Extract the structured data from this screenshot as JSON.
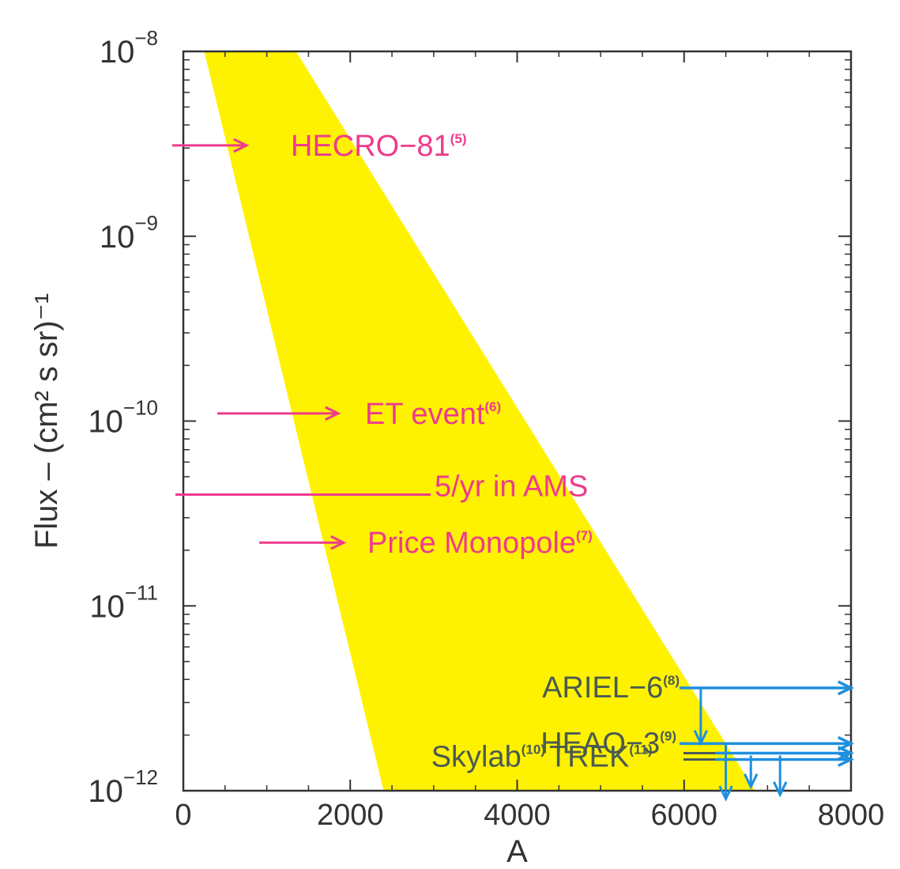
{
  "chart_data": {
    "type": "area",
    "xlabel": "A",
    "ylabel": "Flux – (cm² s sr)⁻¹",
    "xlim": [
      0,
      8000
    ],
    "ylim": [
      1e-12,
      1e-08
    ],
    "yscale": "log",
    "x_ticks": [
      "0",
      "2000",
      "4000",
      "6000",
      "8000"
    ],
    "y_ticks": [
      {
        "base": "10",
        "exp": "−12"
      },
      {
        "base": "10",
        "exp": "−11"
      },
      {
        "base": "10",
        "exp": "−10"
      },
      {
        "base": "10",
        "exp": "−9"
      },
      {
        "base": "10",
        "exp": "−8"
      }
    ],
    "band": {
      "color": "#fff200",
      "polygon": [
        [
          250,
          1e-08
        ],
        [
          1350,
          1e-08
        ],
        [
          6850,
          1e-12
        ],
        [
          2400,
          1e-12
        ]
      ]
    },
    "pink_annotations": [
      {
        "label": "HECRO−81",
        "ref": "(5)",
        "flux": 3.1e-09
      },
      {
        "label": "ET event",
        "ref": "(6)",
        "flux": 1.1e-10
      },
      {
        "label": "5/yr in AMS",
        "ref": "",
        "flux": 4e-11
      },
      {
        "label": "Price Monopole",
        "ref": "(7)",
        "flux": 2.2e-11
      }
    ],
    "blue_limits": [
      {
        "label": "ARIEL−6",
        "ref": "(8)",
        "flux": 3.6e-12,
        "from_x": 6200
      },
      {
        "label": "HEAO−3",
        "ref": "(9)",
        "flux": 1.8e-12,
        "from_x": 6500
      },
      {
        "label": "Skylab",
        "ref": "(10)",
        "flux": 1.55e-12,
        "from_x": 6800
      },
      {
        "label": "TREK",
        "ref": "(11)",
        "flux": 1.55e-12,
        "from_x": 7150
      }
    ],
    "colors": {
      "band": "#fff200",
      "pink": "#ee3b8c",
      "blue": "#1f8fe0",
      "axis": "#333333"
    }
  }
}
